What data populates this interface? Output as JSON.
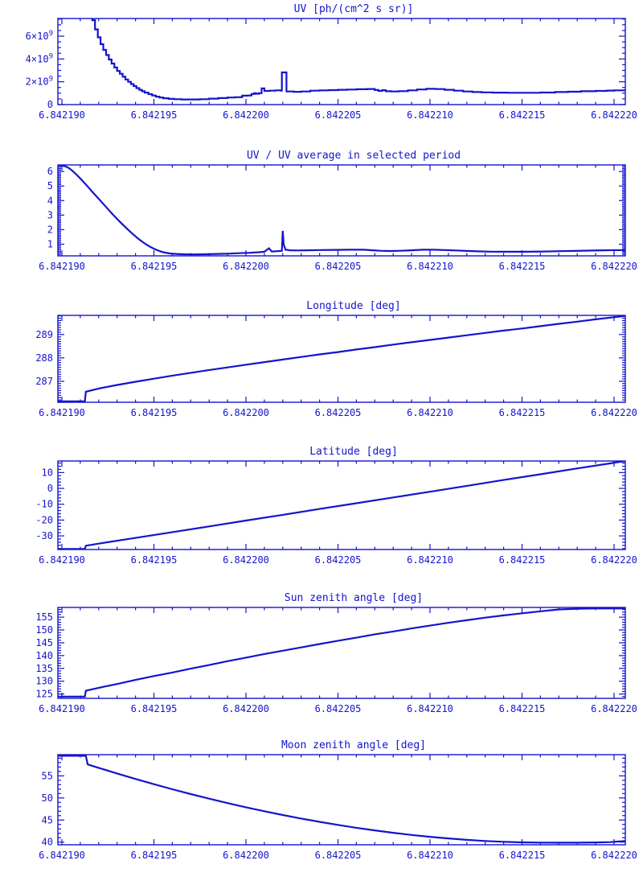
{
  "colors": {
    "plot_blue": "#1414CC",
    "background": "#ffffff"
  },
  "x_axis": {
    "ticks": [
      {
        "v": 6.84219,
        "label": "6.842190"
      },
      {
        "v": 6.842195,
        "label": "6.842195"
      },
      {
        "v": 6.8422,
        "label": "6.842200"
      },
      {
        "v": 6.842205,
        "label": "6.842205"
      },
      {
        "v": 6.84221,
        "label": "6.842210"
      },
      {
        "v": 6.842215,
        "label": "6.842215"
      },
      {
        "v": 6.84222,
        "label": "6.842220"
      }
    ],
    "minor_step": 1e-06,
    "range_shown": [
      6.8421898,
      6.8422206
    ]
  },
  "chart_data": [
    {
      "type": "line",
      "title": "UV [ph/(cm^2 s sr)]",
      "y_unit": "values in 10^9 ph/(cm^2 s sr)",
      "ylim": [
        0,
        7.55
      ],
      "ytick_major": 2,
      "ytick_minor": 0.5,
      "yticks": [
        {
          "v": 0,
          "label": "0"
        },
        {
          "v": 2,
          "label": "2×10^9"
        },
        {
          "v": 4,
          "label": "4×10^9"
        },
        {
          "v": 6,
          "label": "6×10^9"
        }
      ],
      "mode": "step",
      "points": [
        [
          6.8421915,
          8.3
        ],
        [
          6.84219165,
          7.4
        ],
        [
          6.8421918,
          6.6
        ],
        [
          6.84219195,
          5.9
        ],
        [
          6.8421921,
          5.3
        ],
        [
          6.84219225,
          4.8
        ],
        [
          6.8421924,
          4.35
        ],
        [
          6.84219255,
          3.95
        ],
        [
          6.8421927,
          3.6
        ],
        [
          6.84219285,
          3.25
        ],
        [
          6.842193,
          2.95
        ],
        [
          6.84219315,
          2.7
        ],
        [
          6.8421933,
          2.45
        ],
        [
          6.84219345,
          2.2
        ],
        [
          6.8421936,
          2.0
        ],
        [
          6.84219375,
          1.8
        ],
        [
          6.8421939,
          1.62
        ],
        [
          6.84219405,
          1.45
        ],
        [
          6.8421942,
          1.3
        ],
        [
          6.84219435,
          1.17
        ],
        [
          6.8421945,
          1.05
        ],
        [
          6.8421947,
          0.92
        ],
        [
          6.8421949,
          0.8
        ],
        [
          6.8421951,
          0.7
        ],
        [
          6.8421953,
          0.62
        ],
        [
          6.8421955,
          0.56
        ],
        [
          6.8421958,
          0.5
        ],
        [
          6.8421961,
          0.47
        ],
        [
          6.8421965,
          0.45
        ],
        [
          6.842197,
          0.45
        ],
        [
          6.8421975,
          0.47
        ],
        [
          6.842198,
          0.52
        ],
        [
          6.8421985,
          0.57
        ],
        [
          6.842199,
          0.62
        ],
        [
          6.8421994,
          0.65
        ],
        [
          6.84219975,
          0.66
        ],
        [
          6.8421998,
          0.78
        ],
        [
          6.8422001,
          0.8
        ],
        [
          6.8422003,
          0.93
        ],
        [
          6.84220045,
          1.0
        ],
        [
          6.84220055,
          0.95
        ],
        [
          6.8422007,
          1.0
        ],
        [
          6.84220085,
          1.42
        ],
        [
          6.842201,
          1.2
        ],
        [
          6.8422013,
          1.22
        ],
        [
          6.8422016,
          1.25
        ],
        [
          6.8422019,
          1.22
        ],
        [
          6.84220195,
          2.82
        ],
        [
          6.84220215,
          2.82
        ],
        [
          6.8422022,
          1.15
        ],
        [
          6.8422026,
          1.12
        ],
        [
          6.842203,
          1.15
        ],
        [
          6.8422035,
          1.22
        ],
        [
          6.842204,
          1.25
        ],
        [
          6.8422045,
          1.27
        ],
        [
          6.842205,
          1.3
        ],
        [
          6.8422055,
          1.32
        ],
        [
          6.842206,
          1.35
        ],
        [
          6.8422066,
          1.37
        ],
        [
          6.842207,
          1.28
        ],
        [
          6.8422072,
          1.2
        ],
        [
          6.8422074,
          1.26
        ],
        [
          6.8422076,
          1.17
        ],
        [
          6.8422079,
          1.15
        ],
        [
          6.8422083,
          1.18
        ],
        [
          6.8422088,
          1.25
        ],
        [
          6.8422093,
          1.33
        ],
        [
          6.8422098,
          1.38
        ],
        [
          6.8422103,
          1.36
        ],
        [
          6.8422108,
          1.3
        ],
        [
          6.8422113,
          1.22
        ],
        [
          6.8422118,
          1.15
        ],
        [
          6.8422123,
          1.1
        ],
        [
          6.8422128,
          1.07
        ],
        [
          6.8422134,
          1.05
        ],
        [
          6.8422142,
          1.04
        ],
        [
          6.842215,
          1.04
        ],
        [
          6.842216,
          1.06
        ],
        [
          6.8422168,
          1.1
        ],
        [
          6.8422175,
          1.13
        ],
        [
          6.8422182,
          1.17
        ],
        [
          6.842219,
          1.2
        ],
        [
          6.8422196,
          1.23
        ],
        [
          6.84222,
          1.25
        ],
        [
          6.8422206,
          1.27
        ]
      ]
    },
    {
      "type": "line",
      "title": "UV / UV average in selected period",
      "ylim": [
        0.2,
        6.45
      ],
      "ytick_major": 1,
      "ytick_minor": 0.1,
      "yticks": [
        {
          "v": 1,
          "label": "1"
        },
        {
          "v": 2,
          "label": "2"
        },
        {
          "v": 3,
          "label": "3"
        },
        {
          "v": 4,
          "label": "4"
        },
        {
          "v": 5,
          "label": "5"
        },
        {
          "v": 6,
          "label": "6"
        }
      ],
      "mode": "line",
      "points": [
        [
          6.8421898,
          6.42
        ],
        [
          6.84219,
          6.4
        ],
        [
          6.8421902,
          6.35
        ],
        [
          6.8421904,
          6.22
        ],
        [
          6.8421906,
          6.02
        ],
        [
          6.8421908,
          5.78
        ],
        [
          6.842191,
          5.52
        ],
        [
          6.8421912,
          5.25
        ],
        [
          6.8421914,
          4.97
        ],
        [
          6.8421916,
          4.68
        ],
        [
          6.8421918,
          4.4
        ],
        [
          6.842192,
          4.12
        ],
        [
          6.8421922,
          3.84
        ],
        [
          6.8421924,
          3.56
        ],
        [
          6.8421926,
          3.28
        ],
        [
          6.8421928,
          3.0
        ],
        [
          6.842193,
          2.74
        ],
        [
          6.8421932,
          2.48
        ],
        [
          6.8421934,
          2.23
        ],
        [
          6.8421936,
          1.99
        ],
        [
          6.8421938,
          1.76
        ],
        [
          6.842194,
          1.54
        ],
        [
          6.8421942,
          1.33
        ],
        [
          6.8421944,
          1.14
        ],
        [
          6.8421946,
          0.97
        ],
        [
          6.8421948,
          0.82
        ],
        [
          6.842195,
          0.69
        ],
        [
          6.8421952,
          0.58
        ],
        [
          6.8421954,
          0.49
        ],
        [
          6.8421956,
          0.42
        ],
        [
          6.8421959,
          0.36
        ],
        [
          6.8421962,
          0.33
        ],
        [
          6.8421966,
          0.31
        ],
        [
          6.8421972,
          0.3
        ],
        [
          6.8421978,
          0.31
        ],
        [
          6.8421984,
          0.33
        ],
        [
          6.842199,
          0.35
        ],
        [
          6.8421996,
          0.38
        ],
        [
          6.8422002,
          0.41
        ],
        [
          6.8422007,
          0.45
        ],
        [
          6.842201,
          0.48
        ],
        [
          6.84220125,
          0.72
        ],
        [
          6.8422014,
          0.5
        ],
        [
          6.8422017,
          0.52
        ],
        [
          6.84220195,
          0.55
        ],
        [
          6.842202,
          1.92
        ],
        [
          6.84220205,
          1.0
        ],
        [
          6.84220215,
          0.62
        ],
        [
          6.8422024,
          0.58
        ],
        [
          6.8422028,
          0.57
        ],
        [
          6.8422033,
          0.58
        ],
        [
          6.842204,
          0.6
        ],
        [
          6.8422048,
          0.61
        ],
        [
          6.8422056,
          0.62
        ],
        [
          6.8422064,
          0.62
        ],
        [
          6.8422069,
          0.58
        ],
        [
          6.8422073,
          0.55
        ],
        [
          6.8422078,
          0.53
        ],
        [
          6.8422084,
          0.55
        ],
        [
          6.842209,
          0.58
        ],
        [
          6.8422096,
          0.62
        ],
        [
          6.8422102,
          0.62
        ],
        [
          6.8422108,
          0.6
        ],
        [
          6.8422114,
          0.57
        ],
        [
          6.842212,
          0.54
        ],
        [
          6.8422126,
          0.51
        ],
        [
          6.8422133,
          0.49
        ],
        [
          6.8422142,
          0.48
        ],
        [
          6.8422152,
          0.48
        ],
        [
          6.8422162,
          0.5
        ],
        [
          6.842217,
          0.52
        ],
        [
          6.8422178,
          0.54
        ],
        [
          6.8422186,
          0.56
        ],
        [
          6.8422194,
          0.58
        ],
        [
          6.8422206,
          0.6
        ]
      ]
    },
    {
      "type": "line",
      "title": "Longitude [deg]",
      "ylim": [
        286.1,
        289.82
      ],
      "ytick_major": 1,
      "ytick_minor": 0.1,
      "yticks": [
        {
          "v": 287,
          "label": "287"
        },
        {
          "v": 288,
          "label": "288"
        },
        {
          "v": 289,
          "label": "289"
        }
      ],
      "mode": "line",
      "points": [
        [
          6.8421898,
          286.14
        ],
        [
          6.84219125,
          286.14
        ],
        [
          6.8421913,
          286.55
        ],
        [
          6.842192,
          286.69
        ],
        [
          6.842193,
          286.84
        ],
        [
          6.842194,
          286.98
        ],
        [
          6.842195,
          287.11
        ],
        [
          6.842196,
          287.24
        ],
        [
          6.842197,
          287.36
        ],
        [
          6.842198,
          287.48
        ],
        [
          6.842199,
          287.59
        ],
        [
          6.8422,
          287.71
        ],
        [
          6.842201,
          287.82
        ],
        [
          6.842202,
          287.93
        ],
        [
          6.842203,
          288.04
        ],
        [
          6.842204,
          288.15
        ],
        [
          6.842205,
          288.25
        ],
        [
          6.842206,
          288.36
        ],
        [
          6.842207,
          288.46
        ],
        [
          6.842208,
          288.57
        ],
        [
          6.842209,
          288.67
        ],
        [
          6.84221,
          288.77
        ],
        [
          6.842211,
          288.87
        ],
        [
          6.842212,
          288.97
        ],
        [
          6.842213,
          289.07
        ],
        [
          6.842214,
          289.17
        ],
        [
          6.842215,
          289.26
        ],
        [
          6.842216,
          289.36
        ],
        [
          6.842217,
          289.46
        ],
        [
          6.842218,
          289.55
        ],
        [
          6.842219,
          289.65
        ],
        [
          6.84222,
          289.74
        ],
        [
          6.8422206,
          289.8
        ]
      ]
    },
    {
      "type": "line",
      "title": "Latitude [deg]",
      "ylim": [
        -38.6,
        17.3
      ],
      "ytick_major": 10,
      "ytick_minor": 2,
      "yticks": [
        {
          "v": 10,
          "label": "10"
        },
        {
          "v": 0,
          "label": "0"
        },
        {
          "v": -10,
          "label": "-10"
        },
        {
          "v": -20,
          "label": "-20"
        },
        {
          "v": -30,
          "label": "-30"
        }
      ],
      "mode": "line",
      "points": [
        [
          6.8421898,
          -38.3
        ],
        [
          6.84219125,
          -38.3
        ],
        [
          6.8421913,
          -36.2
        ],
        [
          6.842192,
          -34.9
        ],
        [
          6.842194,
          -31.3
        ],
        [
          6.842196,
          -27.6
        ],
        [
          6.842198,
          -24.0
        ],
        [
          6.8422,
          -20.3
        ],
        [
          6.842202,
          -16.7
        ],
        [
          6.842204,
          -13.0
        ],
        [
          6.842206,
          -9.4
        ],
        [
          6.842208,
          -5.7
        ],
        [
          6.84221,
          -2.1
        ],
        [
          6.842212,
          1.6
        ],
        [
          6.842214,
          5.3
        ],
        [
          6.842216,
          8.9
        ],
        [
          6.842218,
          12.6
        ],
        [
          6.84222,
          16.2
        ],
        [
          6.8422206,
          17.3
        ]
      ]
    },
    {
      "type": "line",
      "title": "Sun zenith angle [deg]",
      "ylim": [
        123.3,
        158.8
      ],
      "ytick_major": 5,
      "ytick_minor": 1,
      "yticks": [
        {
          "v": 125,
          "label": "125"
        },
        {
          "v": 130,
          "label": "130"
        },
        {
          "v": 135,
          "label": "135"
        },
        {
          "v": 140,
          "label": "140"
        },
        {
          "v": 145,
          "label": "145"
        },
        {
          "v": 150,
          "label": "150"
        },
        {
          "v": 155,
          "label": "155"
        }
      ],
      "mode": "line",
      "points": [
        [
          6.8421898,
          124.0
        ],
        [
          6.84219125,
          124.0
        ],
        [
          6.8421913,
          126.3
        ],
        [
          6.842192,
          127.4
        ],
        [
          6.842193,
          128.9
        ],
        [
          6.842194,
          130.5
        ],
        [
          6.842195,
          132.0
        ],
        [
          6.842196,
          133.4
        ],
        [
          6.842197,
          134.9
        ],
        [
          6.842198,
          136.3
        ],
        [
          6.842199,
          137.8
        ],
        [
          6.8422,
          139.2
        ],
        [
          6.842201,
          140.6
        ],
        [
          6.842202,
          141.9
        ],
        [
          6.842203,
          143.2
        ],
        [
          6.842204,
          144.5
        ],
        [
          6.842205,
          145.8
        ],
        [
          6.842206,
          147.0
        ],
        [
          6.842207,
          148.3
        ],
        [
          6.842208,
          149.4
        ],
        [
          6.842209,
          150.6
        ],
        [
          6.84221,
          151.7
        ],
        [
          6.842211,
          152.8
        ],
        [
          6.842212,
          153.8
        ],
        [
          6.842213,
          154.8
        ],
        [
          6.842214,
          155.7
        ],
        [
          6.842215,
          156.5
        ],
        [
          6.842216,
          157.3
        ],
        [
          6.842217,
          158.0
        ],
        [
          6.842218,
          158.3
        ],
        [
          6.842219,
          158.38
        ],
        [
          6.8422206,
          158.4
        ]
      ]
    },
    {
      "type": "line",
      "title": "Moon zenith angle [deg]",
      "ylim": [
        39.4,
        59.8
      ],
      "ytick_major": 5,
      "ytick_minor": 1,
      "yticks": [
        {
          "v": 40,
          "label": "40"
        },
        {
          "v": 45,
          "label": "45"
        },
        {
          "v": 50,
          "label": "50"
        },
        {
          "v": 55,
          "label": "55"
        }
      ],
      "mode": "line",
      "points": [
        [
          6.8421898,
          59.55
        ],
        [
          6.8421913,
          59.55
        ],
        [
          6.8421914,
          57.6
        ],
        [
          6.842192,
          56.81
        ],
        [
          6.842193,
          55.53
        ],
        [
          6.842194,
          54.3
        ],
        [
          6.842195,
          53.11
        ],
        [
          6.842196,
          51.97
        ],
        [
          6.842197,
          50.88
        ],
        [
          6.842198,
          49.83
        ],
        [
          6.842199,
          48.83
        ],
        [
          6.8422,
          47.89
        ],
        [
          6.842201,
          46.99
        ],
        [
          6.842202,
          46.14
        ],
        [
          6.842203,
          45.34
        ],
        [
          6.842204,
          44.59
        ],
        [
          6.842205,
          43.89
        ],
        [
          6.842206,
          43.25
        ],
        [
          6.842207,
          42.66
        ],
        [
          6.842208,
          42.12
        ],
        [
          6.842209,
          41.63
        ],
        [
          6.84221,
          41.2
        ],
        [
          6.842211,
          40.83
        ],
        [
          6.842212,
          40.51
        ],
        [
          6.842213,
          40.26
        ],
        [
          6.842214,
          40.07
        ],
        [
          6.842215,
          39.95
        ],
        [
          6.842216,
          39.9
        ],
        [
          6.842217,
          39.88
        ],
        [
          6.842218,
          39.88
        ],
        [
          6.842219,
          39.92
        ],
        [
          6.8422198,
          40.0
        ],
        [
          6.8422206,
          40.25
        ]
      ]
    }
  ]
}
